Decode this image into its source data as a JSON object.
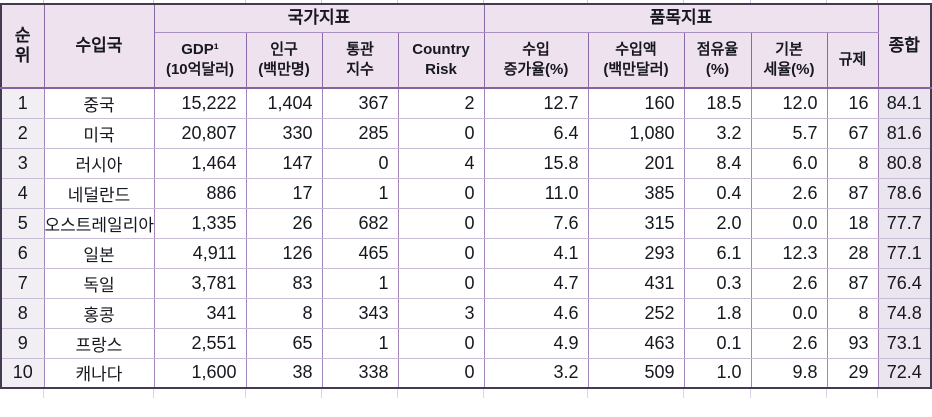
{
  "table": {
    "title_semantic": "import-country-indicator-ranking-table",
    "header": {
      "rank": "순\n위",
      "importer": "수입국",
      "group_country": "국가지표",
      "group_item": "품목지표",
      "total": "종합",
      "sub": {
        "gdp": "GDP¹\n(10억달러)",
        "population": "인구\n(백만명)",
        "customs_index": "통관\n지수",
        "country_risk": "Country\nRisk",
        "import_growth": "수입\n증가율(%)",
        "import_value": "수입액\n(백만달러)",
        "share": "점유율\n(%)",
        "base_tariff": "기본\n세율(%)",
        "regulation": "규제"
      }
    },
    "rows": [
      [
        "1",
        "중국",
        "15,222",
        "1,404",
        "367",
        "2",
        "12.7",
        "160",
        "18.5",
        "12.0",
        "16",
        "84.1"
      ],
      [
        "2",
        "미국",
        "20,807",
        "330",
        "285",
        "0",
        "6.4",
        "1,080",
        "3.2",
        "5.7",
        "67",
        "81.6"
      ],
      [
        "3",
        "러시아",
        "1,464",
        "147",
        "0",
        "4",
        "15.8",
        "201",
        "8.4",
        "6.0",
        "8",
        "80.8"
      ],
      [
        "4",
        "네덜란드",
        "886",
        "17",
        "1",
        "0",
        "11.0",
        "385",
        "0.4",
        "2.6",
        "87",
        "78.6"
      ],
      [
        "5",
        "오스트레일리아",
        "1,335",
        "26",
        "682",
        "0",
        "7.6",
        "315",
        "2.0",
        "0.0",
        "18",
        "77.7"
      ],
      [
        "6",
        "일본",
        "4,911",
        "126",
        "465",
        "0",
        "4.1",
        "293",
        "6.1",
        "12.3",
        "28",
        "77.1"
      ],
      [
        "7",
        "독일",
        "3,781",
        "83",
        "1",
        "0",
        "4.7",
        "431",
        "0.3",
        "2.6",
        "87",
        "76.4"
      ],
      [
        "8",
        "홍콩",
        "341",
        "8",
        "343",
        "3",
        "4.6",
        "252",
        "1.8",
        "0.0",
        "8",
        "74.8"
      ],
      [
        "9",
        "프랑스",
        "2,551",
        "65",
        "1",
        "0",
        "4.9",
        "463",
        "0.1",
        "2.6",
        "93",
        "73.1"
      ],
      [
        "10",
        "캐나다",
        "1,600",
        "38",
        "338",
        "0",
        "3.2",
        "509",
        "1.0",
        "9.8",
        "29",
        "72.4"
      ]
    ]
  },
  "colors": {
    "outer_border": "#453b50",
    "grid_vertical": "#8b69a8",
    "grid_horizontal": "#c9bcd6",
    "header_bg": "#ede2ee",
    "rank_col_bg": "#f1eef4",
    "total_col_bg": "#ebe5ef",
    "text": "#17171f"
  }
}
